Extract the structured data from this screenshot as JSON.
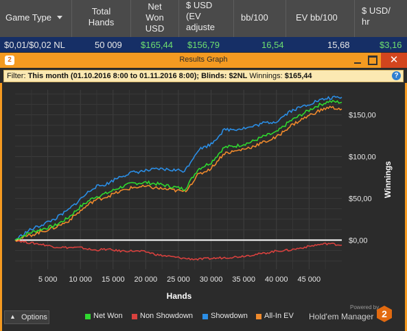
{
  "stats_table": {
    "columns": [
      "Game Type",
      "Total\nHands",
      "Net\nWon\nUSD",
      "$ USD\n(EV\nadjuste",
      "bb/100",
      "EV bb/100",
      "$ USD/\nhr"
    ],
    "row": {
      "game_type": "$0,01/$0,02 NL",
      "total_hands": "50 009",
      "net_won": "$165,44",
      "ev_adjusted": "$156,79",
      "bb100": "16,54",
      "ev_bb100": "15,68",
      "usd_hr": "$3,16"
    }
  },
  "window": {
    "badge": "2",
    "title": "Results Graph",
    "close_label": "✕",
    "filter": {
      "prefix": "Filter: ",
      "range_label": "This month",
      "range_value": " (01.10.2016 8:00 to 01.11.2016 8:00); ",
      "blinds_label": "Blinds: ",
      "blinds_value": "$2NL",
      "winnings_label": " Winnings: ",
      "winnings_value": "$165,44"
    },
    "help_label": "?"
  },
  "footer": {
    "options_label": "Options",
    "powered_by": "Powered by",
    "brand": "Hold'em Manager",
    "brand_badge": "2"
  },
  "colors": {
    "net_won": "#2fd92f",
    "non_showdown": "#d9413e",
    "showdown": "#2b8ee6",
    "all_in_ev": "#f08a2c",
    "accent": "#f49a21"
  },
  "chart_data": {
    "type": "line",
    "xlabel": "Hands",
    "ylabel": "Winnings",
    "xlim": [
      0,
      50009
    ],
    "ylim": [
      -35,
      180
    ],
    "x_ticks": [
      5000,
      10000,
      15000,
      20000,
      25000,
      30000,
      35000,
      40000,
      45000
    ],
    "x_tick_labels": [
      "5 000",
      "10 000",
      "15 000",
      "20 000",
      "25 000",
      "30 000",
      "35 000",
      "40 000",
      "45 000"
    ],
    "y_ticks": [
      0,
      50,
      100,
      150
    ],
    "y_tick_labels": [
      "$0,00",
      "$50,00",
      "$100,00",
      "$150,00"
    ],
    "grid": true,
    "legend_position": "bottom",
    "x": [
      0,
      2000,
      4000,
      6000,
      8000,
      10000,
      12000,
      14000,
      16000,
      18000,
      20000,
      22000,
      24000,
      26000,
      28000,
      30000,
      32000,
      34000,
      36000,
      38000,
      40000,
      42000,
      44000,
      46000,
      48000,
      50009
    ],
    "series": [
      {
        "name": "Net Won",
        "values": [
          0,
          8,
          13,
          17,
          26,
          40,
          51,
          56,
          63,
          68,
          69,
          67,
          64,
          61,
          85,
          93,
          111,
          113,
          117,
          124,
          129,
          142,
          151,
          160,
          166,
          165
        ]
      },
      {
        "name": "Non Showdown",
        "values": [
          0,
          -3,
          -5,
          -8,
          -9,
          -9,
          -12,
          -11,
          -13,
          -13,
          -14,
          -18,
          -20,
          -22,
          -23,
          -22,
          -21,
          -20,
          -18,
          -16,
          -13,
          -12,
          -9,
          -6,
          -4,
          -6
        ]
      },
      {
        "name": "Showdown",
        "values": [
          0,
          11,
          18,
          25,
          35,
          49,
          63,
          67,
          76,
          81,
          83,
          85,
          84,
          83,
          108,
          115,
          132,
          133,
          135,
          140,
          142,
          154,
          160,
          166,
          170,
          171
        ]
      },
      {
        "name": "All-In EV",
        "values": [
          0,
          5,
          10,
          15,
          22,
          35,
          47,
          52,
          58,
          63,
          64,
          62,
          60,
          58,
          78,
          86,
          104,
          107,
          111,
          117,
          123,
          136,
          145,
          153,
          159,
          157
        ]
      }
    ]
  }
}
